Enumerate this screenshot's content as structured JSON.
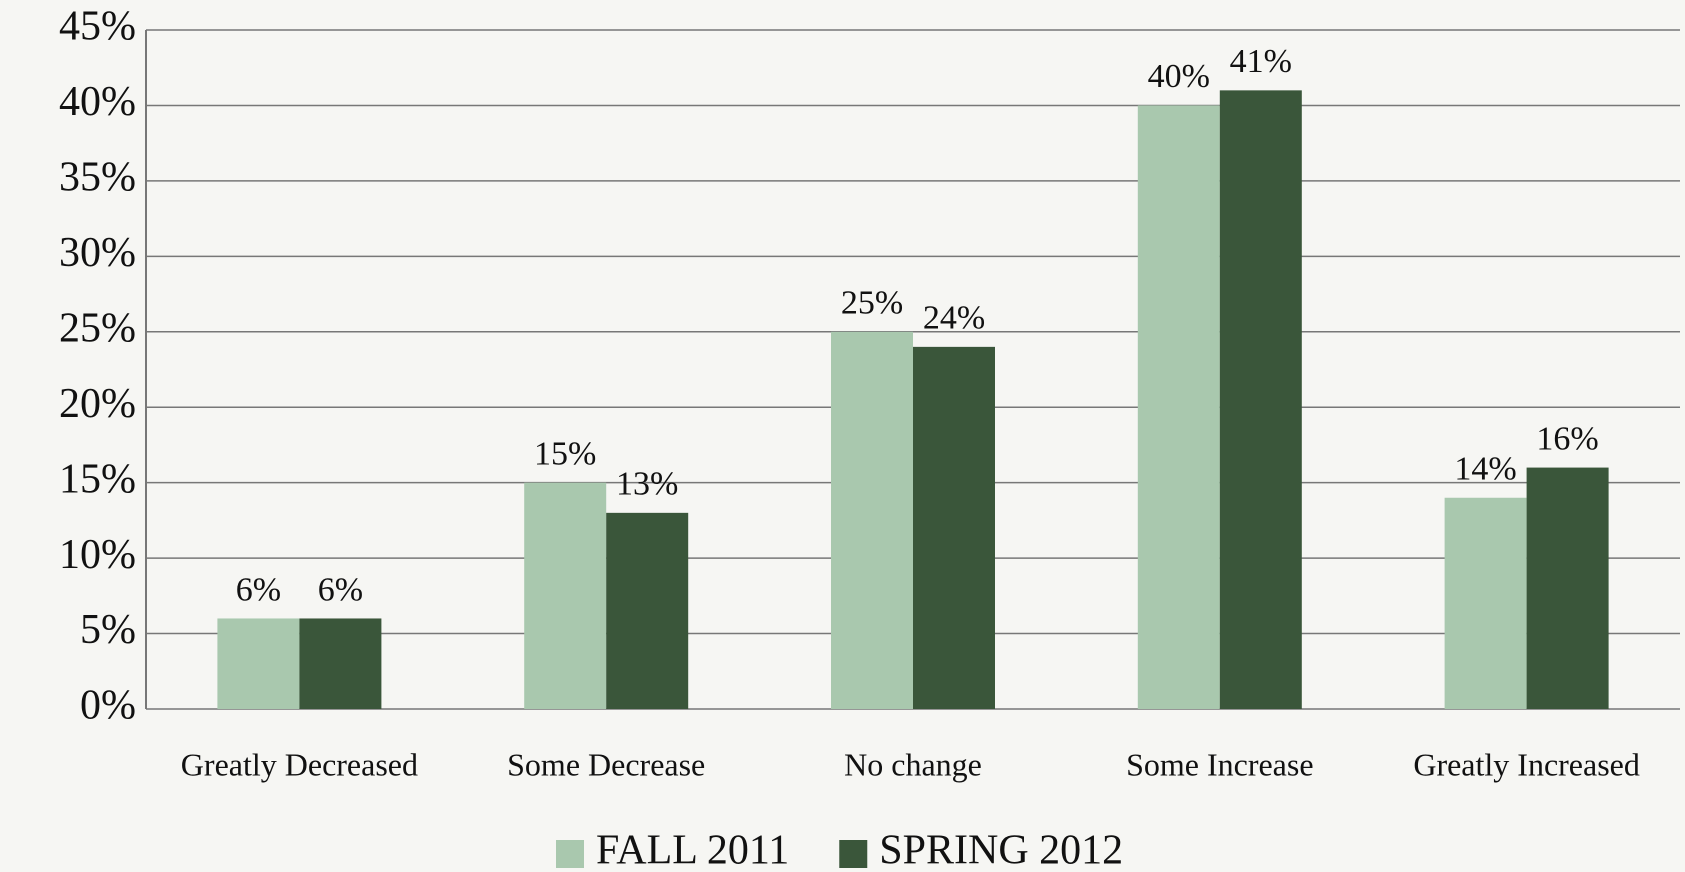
{
  "chart_data": {
    "type": "bar",
    "categories": [
      "Greatly Decreased",
      "Some Decrease",
      "No change",
      "Some Increase",
      "Greatly Increased"
    ],
    "series": [
      {
        "name": "FALL 2011",
        "color": "#a9c8ae",
        "values": [
          6,
          15,
          25,
          40,
          14
        ],
        "value_labels": [
          "6%",
          "15%",
          "25%",
          "40%",
          "14%"
        ]
      },
      {
        "name": "SPRING 2012",
        "color": "#3a563a",
        "values": [
          6,
          13,
          24,
          41,
          16
        ],
        "value_labels": [
          "6%",
          "13%",
          "24%",
          "41%",
          "16%"
        ]
      }
    ],
    "ylim": [
      0,
      45
    ],
    "yticks": [
      {
        "value": 0,
        "label": "0%"
      },
      {
        "value": 5,
        "label": "5%"
      },
      {
        "value": 10,
        "label": "10%"
      },
      {
        "value": 15,
        "label": "15%"
      },
      {
        "value": 20,
        "label": "20%"
      },
      {
        "value": 25,
        "label": "25%"
      },
      {
        "value": 30,
        "label": "30%"
      },
      {
        "value": 35,
        "label": "35%"
      },
      {
        "value": 40,
        "label": "40%"
      },
      {
        "value": 45,
        "label": "45%"
      }
    ],
    "grid": true,
    "legend": "bottom"
  }
}
